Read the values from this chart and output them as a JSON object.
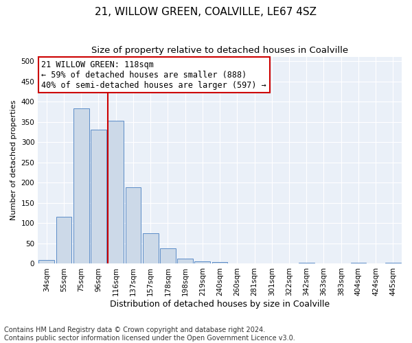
{
  "title1": "21, WILLOW GREEN, COALVILLE, LE67 4SZ",
  "title2": "Size of property relative to detached houses in Coalville",
  "xlabel": "Distribution of detached houses by size in Coalville",
  "ylabel": "Number of detached properties",
  "footnote": "Contains HM Land Registry data © Crown copyright and database right 2024.\nContains public sector information licensed under the Open Government Licence v3.0.",
  "bin_labels": [
    "34sqm",
    "55sqm",
    "75sqm",
    "96sqm",
    "116sqm",
    "137sqm",
    "157sqm",
    "178sqm",
    "198sqm",
    "219sqm",
    "240sqm",
    "260sqm",
    "281sqm",
    "301sqm",
    "322sqm",
    "342sqm",
    "363sqm",
    "383sqm",
    "404sqm",
    "424sqm",
    "445sqm"
  ],
  "bar_values": [
    10,
    115,
    383,
    330,
    352,
    188,
    76,
    38,
    12,
    6,
    5,
    1,
    0,
    0,
    0,
    3,
    0,
    0,
    2,
    0,
    3
  ],
  "bar_color": "#ccd9e8",
  "bar_edge_color": "#5b8cc7",
  "vline_color": "#cc0000",
  "annotation_text": "21 WILLOW GREEN: 118sqm\n← 59% of detached houses are smaller (888)\n40% of semi-detached houses are larger (597) →",
  "annotation_box_color": "#ffffff",
  "annotation_box_edge": "#cc0000",
  "ylim": [
    0,
    510
  ],
  "yticks": [
    0,
    50,
    100,
    150,
    200,
    250,
    300,
    350,
    400,
    450,
    500
  ],
  "bg_color": "#eaf0f8",
  "grid_color": "#ffffff",
  "fig_color": "#ffffff",
  "title1_fontsize": 11,
  "title2_fontsize": 9.5,
  "annot_fontsize": 8.5,
  "xlabel_fontsize": 9,
  "ylabel_fontsize": 8,
  "tick_fontsize": 7.5,
  "footnote_fontsize": 7
}
